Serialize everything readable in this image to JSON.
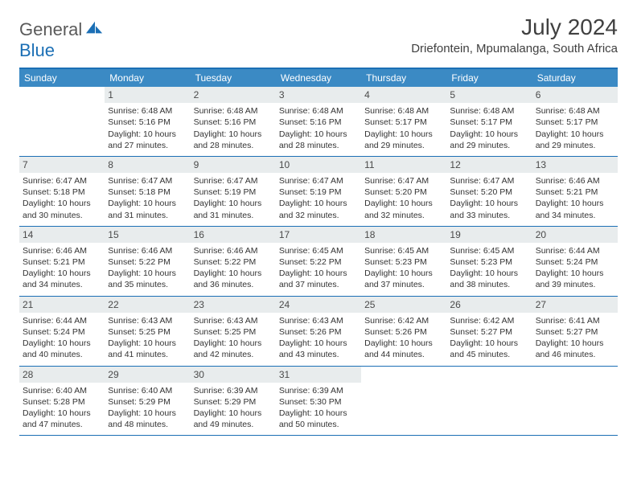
{
  "logo": {
    "word1": "General",
    "word2": "Blue"
  },
  "title": "July 2024",
  "location": "Driefontein, Mpumalanga, South Africa",
  "colors": {
    "header_bg": "#3b8ac4",
    "header_text": "#ffffff",
    "border": "#1b6fb5",
    "daynum_bg": "#e8eced",
    "text": "#333333"
  },
  "daysOfWeek": [
    "Sunday",
    "Monday",
    "Tuesday",
    "Wednesday",
    "Thursday",
    "Friday",
    "Saturday"
  ],
  "weeks": [
    [
      null,
      {
        "n": "1",
        "sr": "6:48 AM",
        "ss": "5:16 PM",
        "dl": "10 hours and 27 minutes."
      },
      {
        "n": "2",
        "sr": "6:48 AM",
        "ss": "5:16 PM",
        "dl": "10 hours and 28 minutes."
      },
      {
        "n": "3",
        "sr": "6:48 AM",
        "ss": "5:16 PM",
        "dl": "10 hours and 28 minutes."
      },
      {
        "n": "4",
        "sr": "6:48 AM",
        "ss": "5:17 PM",
        "dl": "10 hours and 29 minutes."
      },
      {
        "n": "5",
        "sr": "6:48 AM",
        "ss": "5:17 PM",
        "dl": "10 hours and 29 minutes."
      },
      {
        "n": "6",
        "sr": "6:48 AM",
        "ss": "5:17 PM",
        "dl": "10 hours and 29 minutes."
      }
    ],
    [
      {
        "n": "7",
        "sr": "6:47 AM",
        "ss": "5:18 PM",
        "dl": "10 hours and 30 minutes."
      },
      {
        "n": "8",
        "sr": "6:47 AM",
        "ss": "5:18 PM",
        "dl": "10 hours and 31 minutes."
      },
      {
        "n": "9",
        "sr": "6:47 AM",
        "ss": "5:19 PM",
        "dl": "10 hours and 31 minutes."
      },
      {
        "n": "10",
        "sr": "6:47 AM",
        "ss": "5:19 PM",
        "dl": "10 hours and 32 minutes."
      },
      {
        "n": "11",
        "sr": "6:47 AM",
        "ss": "5:20 PM",
        "dl": "10 hours and 32 minutes."
      },
      {
        "n": "12",
        "sr": "6:47 AM",
        "ss": "5:20 PM",
        "dl": "10 hours and 33 minutes."
      },
      {
        "n": "13",
        "sr": "6:46 AM",
        "ss": "5:21 PM",
        "dl": "10 hours and 34 minutes."
      }
    ],
    [
      {
        "n": "14",
        "sr": "6:46 AM",
        "ss": "5:21 PM",
        "dl": "10 hours and 34 minutes."
      },
      {
        "n": "15",
        "sr": "6:46 AM",
        "ss": "5:22 PM",
        "dl": "10 hours and 35 minutes."
      },
      {
        "n": "16",
        "sr": "6:46 AM",
        "ss": "5:22 PM",
        "dl": "10 hours and 36 minutes."
      },
      {
        "n": "17",
        "sr": "6:45 AM",
        "ss": "5:22 PM",
        "dl": "10 hours and 37 minutes."
      },
      {
        "n": "18",
        "sr": "6:45 AM",
        "ss": "5:23 PM",
        "dl": "10 hours and 37 minutes."
      },
      {
        "n": "19",
        "sr": "6:45 AM",
        "ss": "5:23 PM",
        "dl": "10 hours and 38 minutes."
      },
      {
        "n": "20",
        "sr": "6:44 AM",
        "ss": "5:24 PM",
        "dl": "10 hours and 39 minutes."
      }
    ],
    [
      {
        "n": "21",
        "sr": "6:44 AM",
        "ss": "5:24 PM",
        "dl": "10 hours and 40 minutes."
      },
      {
        "n": "22",
        "sr": "6:43 AM",
        "ss": "5:25 PM",
        "dl": "10 hours and 41 minutes."
      },
      {
        "n": "23",
        "sr": "6:43 AM",
        "ss": "5:25 PM",
        "dl": "10 hours and 42 minutes."
      },
      {
        "n": "24",
        "sr": "6:43 AM",
        "ss": "5:26 PM",
        "dl": "10 hours and 43 minutes."
      },
      {
        "n": "25",
        "sr": "6:42 AM",
        "ss": "5:26 PM",
        "dl": "10 hours and 44 minutes."
      },
      {
        "n": "26",
        "sr": "6:42 AM",
        "ss": "5:27 PM",
        "dl": "10 hours and 45 minutes."
      },
      {
        "n": "27",
        "sr": "6:41 AM",
        "ss": "5:27 PM",
        "dl": "10 hours and 46 minutes."
      }
    ],
    [
      {
        "n": "28",
        "sr": "6:40 AM",
        "ss": "5:28 PM",
        "dl": "10 hours and 47 minutes."
      },
      {
        "n": "29",
        "sr": "6:40 AM",
        "ss": "5:29 PM",
        "dl": "10 hours and 48 minutes."
      },
      {
        "n": "30",
        "sr": "6:39 AM",
        "ss": "5:29 PM",
        "dl": "10 hours and 49 minutes."
      },
      {
        "n": "31",
        "sr": "6:39 AM",
        "ss": "5:30 PM",
        "dl": "10 hours and 50 minutes."
      },
      null,
      null,
      null
    ]
  ],
  "labels": {
    "sunrise": "Sunrise: ",
    "sunset": "Sunset: ",
    "daylight": "Daylight: "
  }
}
